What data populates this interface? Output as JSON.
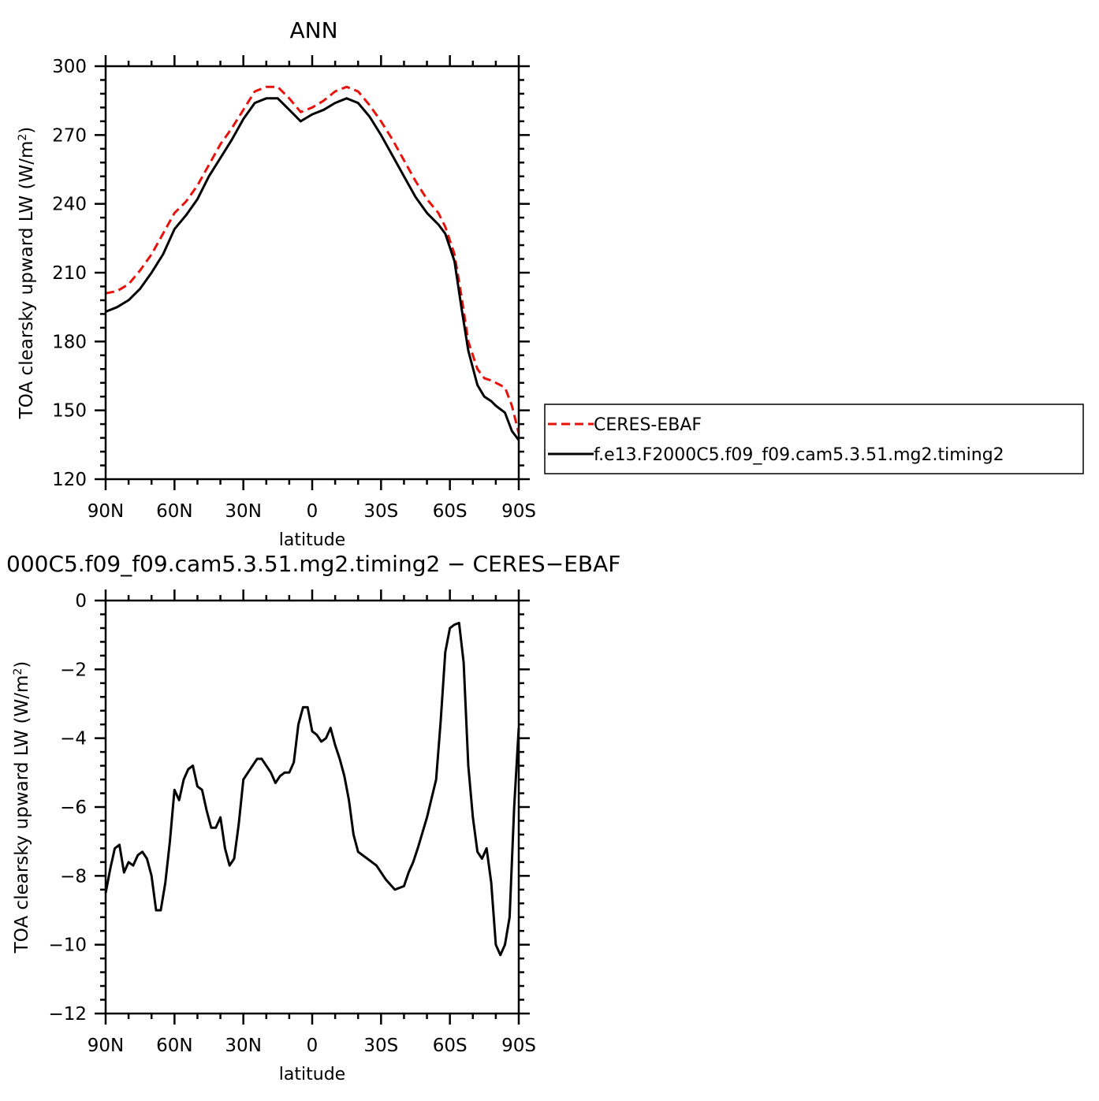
{
  "chart_data": [
    {
      "type": "line",
      "title": "ANN",
      "xlabel": "latitude",
      "ylabel": "TOA clearsky upward LW (W/m²)",
      "ylabel_parts": {
        "main": "TOA clearsky upward LW (W/m",
        "sup": "2",
        "close": ")"
      },
      "xlim": [
        90,
        -90
      ],
      "ylim": [
        120,
        300
      ],
      "xticks": [
        90,
        60,
        30,
        0,
        -30,
        -60,
        -90
      ],
      "xticklabels": [
        "90N",
        "60N",
        "30N",
        "0",
        "30S",
        "60S",
        "90S"
      ],
      "yticks": [
        120,
        150,
        180,
        210,
        240,
        270,
        300
      ],
      "yticklabels": [
        "120",
        "150",
        "180",
        "210",
        "240",
        "270",
        "300"
      ],
      "legend": "right",
      "series": [
        {
          "name": "CERES-EBAF",
          "color": "#e8120c",
          "dash": "dashed",
          "x": [
            90,
            85,
            80,
            75,
            70,
            65,
            60,
            55,
            50,
            45,
            40,
            35,
            30,
            25,
            20,
            15,
            10,
            5,
            0,
            -5,
            -10,
            -15,
            -20,
            -25,
            -30,
            -35,
            -40,
            -45,
            -50,
            -55,
            -58,
            -62,
            -65,
            -68,
            -72,
            -75,
            -78,
            -80,
            -84,
            -87,
            -90
          ],
          "values": [
            201,
            202,
            205,
            211,
            218,
            227,
            236,
            241,
            248,
            257,
            266,
            273,
            281,
            289,
            291,
            291,
            286,
            280,
            282,
            285,
            289,
            291,
            289,
            283,
            276,
            268,
            259,
            250,
            242,
            236,
            230,
            218,
            200,
            180,
            168,
            164,
            163,
            162,
            160,
            152,
            140
          ]
        },
        {
          "name": "f.e13.F2000C5.f09_f09.cam5.3.51.mg2.timing2",
          "color": "#000000",
          "dash": "solid",
          "x": [
            90,
            85,
            80,
            75,
            70,
            65,
            60,
            55,
            50,
            45,
            40,
            35,
            30,
            25,
            20,
            15,
            10,
            5,
            0,
            -5,
            -10,
            -15,
            -20,
            -25,
            -30,
            -35,
            -40,
            -45,
            -50,
            -55,
            -58,
            -62,
            -65,
            -68,
            -72,
            -75,
            -78,
            -80,
            -84,
            -87,
            -90
          ],
          "values": [
            193,
            195,
            198,
            203,
            210,
            218,
            229,
            235,
            242,
            252,
            260,
            268,
            277,
            284,
            286,
            286,
            281,
            276,
            279,
            281,
            284,
            286,
            284,
            278,
            270,
            261,
            252,
            243,
            236,
            231,
            227,
            215,
            195,
            176,
            161,
            156,
            154,
            152,
            149,
            141,
            137
          ]
        }
      ]
    },
    {
      "type": "line",
      "title": "000C5.f09_f09.cam5.3.51.mg2.timing2 − CERES−EBAF",
      "xlabel": "latitude",
      "ylabel": "TOA clearsky upward LW (W/m²)",
      "ylabel_parts": {
        "main": "TOA clearsky upward LW (W/m",
        "sup": "2",
        "close": ")"
      },
      "xlim": [
        90,
        -90
      ],
      "ylim": [
        -12,
        0
      ],
      "xticks": [
        90,
        60,
        30,
        0,
        -30,
        -60,
        -90
      ],
      "xticklabels": [
        "90N",
        "60N",
        "30N",
        "0",
        "30S",
        "60S",
        "90S"
      ],
      "yticks": [
        -12,
        -10,
        -8,
        -6,
        -4,
        -2,
        0
      ],
      "yticklabels": [
        "−12",
        "−10",
        "−8",
        "−6",
        "−4",
        "−2",
        "0"
      ],
      "series": [
        {
          "name": "",
          "color": "#000000",
          "dash": "solid",
          "x": [
            90,
            88,
            86,
            84,
            82,
            80,
            78,
            76,
            74,
            72,
            70,
            68,
            66,
            64,
            62,
            60,
            58,
            56,
            54,
            52,
            50,
            48,
            46,
            44,
            42,
            40,
            38,
            36,
            34,
            32,
            30,
            28,
            26,
            24,
            22,
            20,
            18,
            16,
            14,
            12,
            10,
            8,
            6,
            4,
            2,
            0,
            -2,
            -4,
            -6,
            -8,
            -10,
            -12,
            -14,
            -16,
            -18,
            -20,
            -24,
            -28,
            -32,
            -36,
            -40,
            -42,
            -44,
            -46,
            -50,
            -54,
            -56,
            -58,
            -60,
            -62,
            -64,
            -66,
            -68,
            -70,
            -72,
            -74,
            -76,
            -78,
            -80,
            -82,
            -84,
            -86,
            -88,
            -90
          ],
          "values": [
            -8.5,
            -7.8,
            -7.2,
            -7.1,
            -7.9,
            -7.6,
            -7.7,
            -7.4,
            -7.3,
            -7.5,
            -8.0,
            -9.0,
            -9.0,
            -8.2,
            -7.0,
            -5.5,
            -5.8,
            -5.2,
            -4.9,
            -4.8,
            -5.4,
            -5.5,
            -6.1,
            -6.6,
            -6.6,
            -6.3,
            -7.2,
            -7.7,
            -7.5,
            -6.5,
            -5.2,
            -5.0,
            -4.8,
            -4.6,
            -4.6,
            -4.8,
            -5.0,
            -5.3,
            -5.1,
            -5.0,
            -5.0,
            -4.7,
            -3.6,
            -3.1,
            -3.1,
            -3.8,
            -3.9,
            -4.1,
            -4.0,
            -3.7,
            -4.2,
            -4.6,
            -5.1,
            -5.8,
            -6.8,
            -7.3,
            -7.5,
            -7.7,
            -8.1,
            -8.4,
            -8.3,
            -7.9,
            -7.6,
            -7.2,
            -6.3,
            -5.2,
            -3.5,
            -1.5,
            -0.8,
            -0.7,
            -0.65,
            -1.8,
            -4.8,
            -6.3,
            -7.3,
            -7.5,
            -7.2,
            -8.2,
            -10.0,
            -10.3,
            -10.0,
            -9.2,
            -6.0,
            -3.7
          ]
        }
      ]
    }
  ]
}
